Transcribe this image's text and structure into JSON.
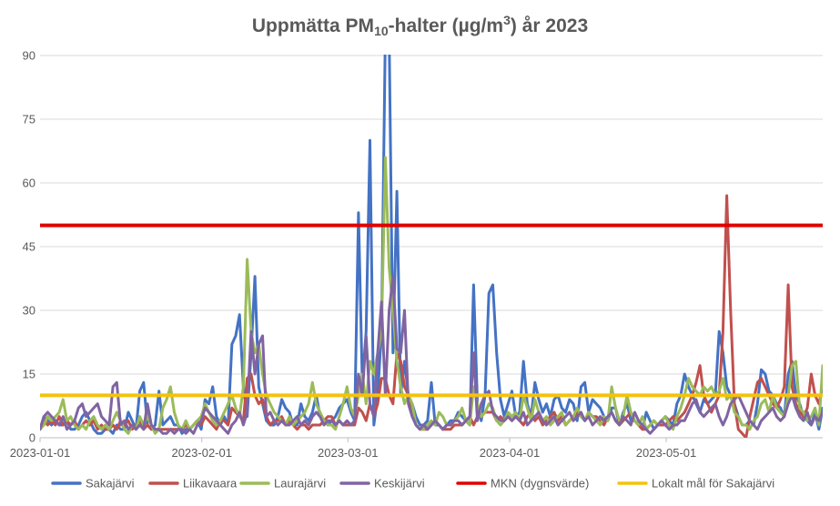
{
  "chart_data": {
    "type": "line",
    "title": {
      "prefix": "Uppmätta PM",
      "sub": "10",
      "middle": "-halter (µg/m",
      "sup": "3",
      "suffix": ") år 2023"
    },
    "x_start": "2023-01-01",
    "x_end": "2023-05-31",
    "x_ticks": [
      "2023-01-01",
      "2023-02-01",
      "2023-03-01",
      "2023-04-01",
      "2023-05-01"
    ],
    "y_ticks": [
      "0",
      "15",
      "30",
      "45",
      "60",
      "75",
      "90"
    ],
    "ylim": [
      0,
      90
    ],
    "grid": "horizontal",
    "legend_position": "bottom",
    "series": [
      {
        "name": "Sakajärvi",
        "color": "#4472C4",
        "values": [
          2,
          5,
          4,
          3,
          4,
          3,
          3,
          4,
          2,
          2,
          3,
          5,
          6,
          4,
          2,
          1,
          1,
          2,
          2,
          1,
          3,
          2,
          2,
          6,
          4,
          2,
          11,
          13,
          3,
          2,
          3,
          11,
          3,
          4,
          5,
          3,
          3,
          1,
          2,
          2,
          3,
          4,
          2,
          9,
          8,
          12,
          5,
          3,
          5,
          3,
          22,
          24,
          29,
          12,
          5,
          20,
          38,
          12,
          8,
          4,
          3,
          3,
          5,
          9,
          7,
          6,
          3,
          3,
          8,
          5,
          4,
          6,
          10,
          5,
          4,
          3,
          4,
          5,
          7,
          8,
          9,
          6,
          4,
          53,
          13,
          25,
          70,
          3,
          10,
          25,
          95,
          95,
          20,
          58,
          10,
          18,
          10,
          8,
          5,
          3,
          3,
          4,
          13,
          3,
          3,
          2,
          3,
          4,
          4,
          6,
          5,
          4,
          3,
          36,
          8,
          4,
          10,
          34,
          36,
          20,
          9,
          5,
          8,
          11,
          5,
          6,
          18,
          8,
          5,
          13,
          9,
          6,
          8,
          5,
          9,
          10,
          7,
          6,
          9,
          8,
          4,
          12,
          13,
          6,
          9,
          8,
          7,
          5,
          4,
          7,
          7,
          3,
          6,
          8,
          4,
          4,
          3,
          2,
          6,
          4,
          2,
          3,
          4,
          5,
          4,
          3,
          8,
          10,
          15,
          12,
          10,
          8,
          6,
          9,
          8,
          9,
          10,
          25,
          20,
          12,
          10,
          8,
          5,
          3,
          3,
          4,
          3,
          8,
          16,
          15,
          11,
          10,
          8,
          7,
          5,
          15,
          18,
          10,
          8,
          5,
          4,
          3,
          6,
          2,
          7
        ]
      },
      {
        "name": "Liikavaara",
        "color": "#C0504D",
        "values": [
          2,
          4,
          3,
          4,
          3,
          5,
          3,
          4,
          3,
          4,
          2,
          3,
          4,
          3,
          4,
          2,
          3,
          2,
          2,
          3,
          2,
          4,
          3,
          4,
          2,
          3,
          4,
          2,
          3,
          2,
          2,
          2,
          2,
          2,
          2,
          2,
          2,
          2,
          3,
          2,
          3,
          4,
          3,
          5,
          4,
          3,
          2,
          4,
          4,
          3,
          7,
          6,
          5,
          4,
          14,
          15,
          10,
          8,
          9,
          5,
          3,
          4,
          4,
          5,
          3,
          4,
          3,
          2,
          3,
          3,
          2,
          3,
          3,
          3,
          4,
          5,
          5,
          3,
          4,
          3,
          3,
          3,
          3,
          7,
          6,
          4,
          8,
          5,
          8,
          14,
          14,
          10,
          8,
          20,
          18,
          12,
          10,
          6,
          3,
          2,
          2,
          2,
          3,
          4,
          3,
          2,
          2,
          2,
          3,
          3,
          3,
          4,
          5,
          3,
          5,
          5,
          6,
          6,
          6,
          4,
          5,
          4,
          5,
          4,
          5,
          4,
          3,
          5,
          6,
          4,
          5,
          3,
          4,
          5,
          6,
          4,
          5,
          3,
          4,
          5,
          6,
          5,
          4,
          6,
          5,
          5,
          4,
          3,
          5,
          6,
          4,
          3,
          4,
          5,
          6,
          4,
          3,
          2,
          2,
          3,
          4,
          3,
          3,
          3,
          4,
          5,
          4,
          5,
          6,
          8,
          10,
          13,
          17,
          10,
          8,
          6,
          8,
          10,
          25,
          57,
          30,
          8,
          2,
          1,
          0,
          5,
          9,
          13,
          14,
          12,
          10,
          8,
          7,
          9,
          12,
          36,
          12,
          8,
          6,
          5,
          7,
          15,
          10,
          8,
          12
        ]
      },
      {
        "name": "Laurajärvi",
        "color": "#9BBB59",
        "values": [
          2,
          3,
          5,
          4,
          5,
          6,
          9,
          4,
          5,
          3,
          2,
          3,
          2,
          4,
          5,
          3,
          2,
          3,
          2,
          4,
          6,
          4,
          2,
          1,
          3,
          2,
          5,
          3,
          5,
          3,
          1,
          2,
          7,
          9,
          12,
          6,
          3,
          2,
          4,
          2,
          3,
          4,
          5,
          8,
          6,
          4,
          3,
          4,
          6,
          8,
          10,
          7,
          5,
          12,
          42,
          25,
          20,
          22,
          15,
          10,
          8,
          6,
          5,
          4,
          3,
          5,
          3,
          4,
          5,
          6,
          8,
          13,
          8,
          6,
          4,
          3,
          3,
          2,
          5,
          8,
          12,
          7,
          5,
          10,
          15,
          8,
          18,
          15,
          20,
          25,
          66,
          40,
          30,
          18,
          12,
          8,
          10,
          8,
          3,
          2,
          2,
          3,
          4,
          3,
          6,
          5,
          3,
          3,
          4,
          5,
          7,
          4,
          3,
          12,
          8,
          5,
          6,
          8,
          7,
          4,
          3,
          4,
          6,
          5,
          6,
          4,
          10,
          7,
          4,
          9,
          6,
          4,
          5,
          3,
          4,
          5,
          6,
          3,
          4,
          5,
          7,
          5,
          4,
          6,
          5,
          4,
          3,
          5,
          4,
          12,
          7,
          4,
          5,
          10,
          6,
          4,
          3,
          5,
          2,
          3,
          4,
          3,
          4,
          5,
          3,
          2,
          5,
          7,
          10,
          14,
          12,
          11,
          10,
          12,
          11,
          12,
          10,
          11,
          14,
          9,
          10,
          6,
          5,
          3,
          3,
          2,
          4,
          5,
          8,
          9,
          6,
          10,
          7,
          6,
          5,
          10,
          17,
          18,
          7,
          6,
          4,
          5,
          7,
          3,
          17
        ]
      },
      {
        "name": "Keskijärvi",
        "color": "#8064A2",
        "values": [
          2,
          5,
          6,
          5,
          4,
          3,
          5,
          2,
          3,
          4,
          7,
          8,
          5,
          6,
          7,
          8,
          5,
          4,
          3,
          12,
          13,
          3,
          4,
          2,
          3,
          2,
          3,
          2,
          8,
          3,
          2,
          2,
          1,
          1,
          2,
          1,
          2,
          2,
          1,
          2,
          1,
          3,
          4,
          7,
          6,
          5,
          4,
          3,
          2,
          1,
          3,
          4,
          6,
          3,
          6,
          25,
          15,
          22,
          24,
          5,
          6,
          4,
          3,
          4,
          3,
          3,
          4,
          5,
          3,
          4,
          3,
          5,
          6,
          5,
          3,
          4,
          4,
          3,
          4,
          3,
          4,
          3,
          4,
          15,
          10,
          24,
          8,
          5,
          20,
          32,
          10,
          30,
          38,
          21,
          20,
          30,
          8,
          5,
          3,
          2,
          3,
          2,
          3,
          4,
          3,
          2,
          3,
          3,
          4,
          4,
          3,
          4,
          5,
          20,
          4,
          8,
          10,
          11,
          6,
          5,
          4,
          4,
          5,
          4,
          5,
          4,
          6,
          3,
          4,
          5,
          6,
          4,
          3,
          4,
          5,
          3,
          4,
          5,
          6,
          4,
          5,
          6,
          4,
          5,
          3,
          4,
          5,
          4,
          5,
          6,
          4,
          3,
          5,
          4,
          3,
          6,
          4,
          3,
          2,
          1,
          2,
          3,
          4,
          3,
          2,
          3,
          3,
          4,
          4,
          6,
          8,
          9,
          6,
          5,
          6,
          7,
          8,
          5,
          3,
          5,
          8,
          9,
          10,
          8,
          6,
          4,
          3,
          2,
          4,
          5,
          6,
          7,
          5,
          4,
          5,
          8,
          10,
          7,
          5,
          4,
          6,
          3,
          5,
          4,
          6
        ]
      },
      {
        "name": "MKN (dygnsvärde)",
        "color": "#E00000",
        "constant": 50
      },
      {
        "name": "Lokalt mål för Sakajärvi",
        "color": "#F4C20D",
        "constant": 10
      }
    ]
  }
}
